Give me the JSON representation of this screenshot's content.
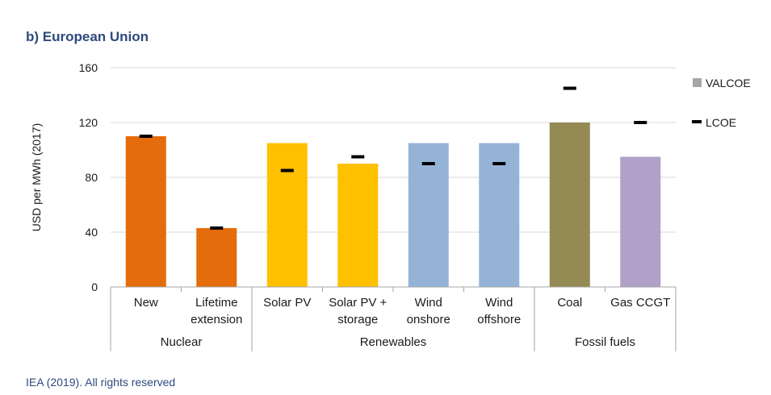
{
  "chart_data": {
    "type": "bar",
    "title": "b) European Union",
    "ylabel": "USD per MWh (2017)",
    "ylim": [
      0,
      160
    ],
    "yticks": [
      0,
      40,
      80,
      120,
      160
    ],
    "grid": true,
    "legend_position": "right",
    "categories": [
      {
        "lines": [
          "New"
        ],
        "group": "Nuclear",
        "color": "#e46c0a"
      },
      {
        "lines": [
          "Lifetime",
          "extension"
        ],
        "group": "Nuclear",
        "color": "#e46c0a"
      },
      {
        "lines": [
          "Solar PV"
        ],
        "group": "Renewables",
        "color": "#ffc000"
      },
      {
        "lines": [
          "Solar PV +",
          "storage"
        ],
        "group": "Renewables",
        "color": "#ffc000"
      },
      {
        "lines": [
          "Wind",
          "onshore"
        ],
        "group": "Renewables",
        "color": "#95b3d7"
      },
      {
        "lines": [
          "Wind",
          "offshore"
        ],
        "group": "Renewables",
        "color": "#95b3d7"
      },
      {
        "lines": [
          "Coal"
        ],
        "group": "Fossil fuels",
        "color": "#948a54"
      },
      {
        "lines": [
          "Gas CCGT"
        ],
        "group": "Fossil fuels",
        "color": "#b1a0c7"
      }
    ],
    "groups": [
      {
        "name": "Nuclear",
        "count": 2
      },
      {
        "name": "Renewables",
        "count": 4
      },
      {
        "name": "Fossil fuels",
        "count": 2
      }
    ],
    "series": [
      {
        "name": "VALCOE",
        "type": "bar",
        "values": [
          110,
          43,
          105,
          90,
          105,
          105,
          120,
          95
        ],
        "legend_color": "#a6a6a6"
      },
      {
        "name": "LCOE",
        "type": "marker",
        "values": [
          110,
          43,
          85,
          95,
          90,
          90,
          145,
          120
        ],
        "legend_color": "#000000"
      }
    ]
  },
  "footer": {
    "credit": "IEA (2019). All rights reserved"
  }
}
